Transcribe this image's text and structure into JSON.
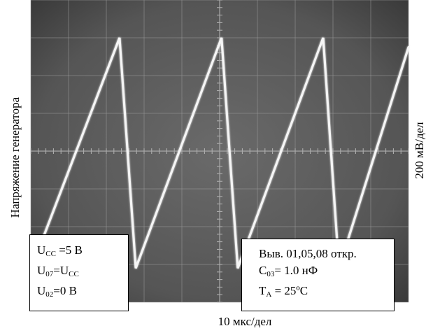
{
  "chart_data": {
    "type": "line",
    "title": "",
    "ylabel_left": "Напряжение генератора",
    "ylabel_right": "200 мВ/дел",
    "xlabel": "10 мкс/дел",
    "grid": true,
    "x_divisions": 10,
    "y_divisions": 8,
    "x_unit": "мкс",
    "y_unit": "мВ",
    "xlim": [
      0,
      100
    ],
    "ylim": [
      -800,
      800
    ],
    "series": [
      {
        "x": [
          0,
          23.5,
          27.8,
          50.5,
          54.8,
          77.4,
          81.6,
          100
        ],
        "y": [
          -630,
          600,
          -620,
          600,
          -620,
          600,
          -620,
          550
        ]
      }
    ]
  },
  "annotations": {
    "conditions_left": {
      "line1_main": "U",
      "line1_sub": "CC",
      "line1_rest": " =5 В",
      "line2_a": "U",
      "line2_a_sub": "07",
      "line2_mid": "=U",
      "line2_b_sub": "CC",
      "line3_main": "U",
      "line3_sub": "02",
      "line3_rest": "=0 В"
    },
    "conditions_right": {
      "line1": "Выв. 01,05,08 откр.",
      "line2_main": "C",
      "line2_sub": "03",
      "line2_rest": "= 1.0 нФ",
      "line3_main": "T",
      "line3_sub": "A",
      "line3_rest": " = 25ºC"
    }
  },
  "colors": {
    "screen": "#5a5a5a",
    "screen_edge": "#2e2e2e",
    "grid": "#9a9a9a",
    "trace": "#f5f5f5"
  }
}
